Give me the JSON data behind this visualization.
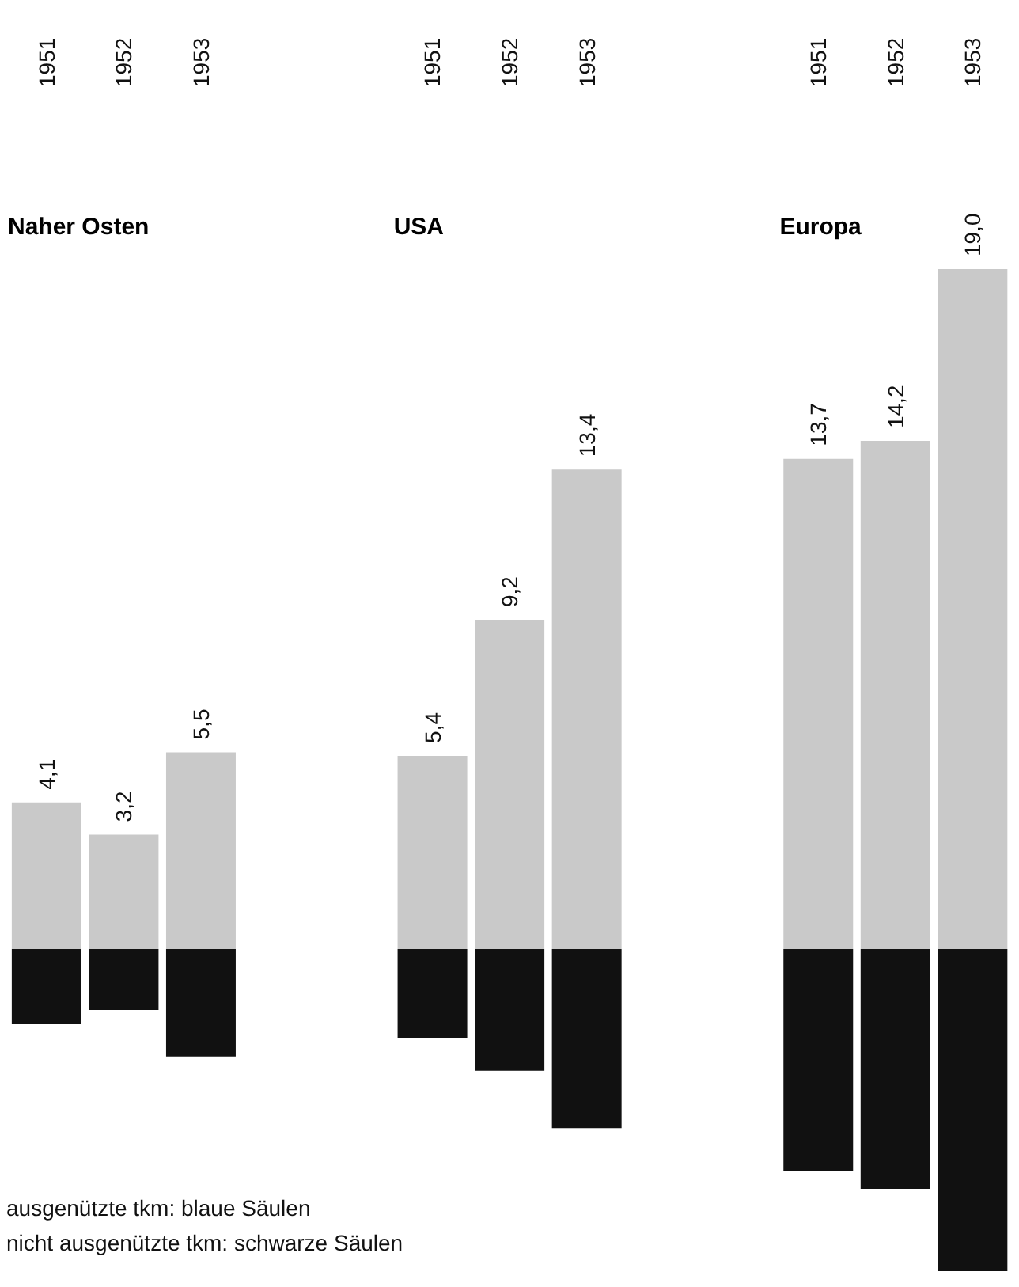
{
  "chart_data": {
    "type": "bar",
    "stacked": true,
    "categories": [
      "1951",
      "1952",
      "1953",
      null,
      null,
      "1951",
      "1952",
      "1953",
      null,
      null,
      "1951",
      "1952",
      "1953"
    ],
    "series": [
      {
        "color": "#c9c9c9",
        "values": [
          4.1,
          3.2,
          5.5,
          null,
          null,
          5.4,
          9.2,
          13.4,
          null,
          null,
          13.7,
          14.2,
          19.0
        ],
        "value_labels": [
          "4,1",
          "3,2",
          "5,5",
          null,
          null,
          "5,4",
          "9,2",
          "13,4",
          null,
          null,
          "13,7",
          "14,2",
          "19,0"
        ]
      },
      {
        "color": "#111111",
        "values": [
          -2.1,
          -1.7,
          -3.0,
          null,
          null,
          -2.5,
          -3.4,
          -5.0,
          null,
          null,
          -6.2,
          -6.7,
          -9.0
        ]
      }
    ],
    "annotations": [
      "Naher Osten",
      "USA",
      "Europa",
      "ausgenützte tkm: blaue Säulen",
      "nicht ausgenützte tkm: schwarze Säulen"
    ]
  }
}
